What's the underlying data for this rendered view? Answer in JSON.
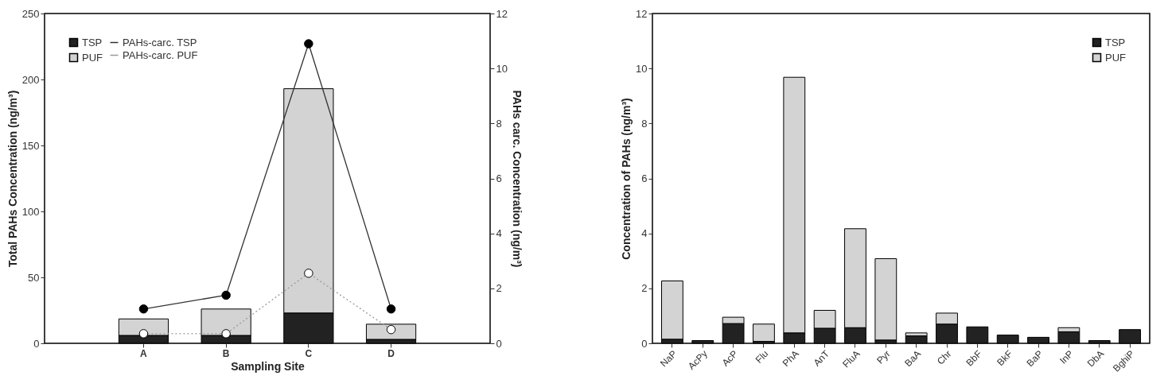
{
  "chart_data": [
    {
      "type": "bar",
      "stacked": true,
      "xlabel": "Sampling Site",
      "ylabel": "Total PAHs Concentration (ng/m³)",
      "y2label": "PAHs carc. Concentration (ng/m³)",
      "categories": [
        "A",
        "B",
        "C",
        "D"
      ],
      "ylim": [
        0,
        250
      ],
      "yticks": [
        0,
        50,
        100,
        150,
        200,
        250
      ],
      "y2lim": [
        0,
        12
      ],
      "y2ticks": [
        0,
        2,
        4,
        6,
        8,
        10,
        12
      ],
      "legend": "top left",
      "marker": "circle",
      "series": [
        {
          "name": "TSP",
          "color": "#222222",
          "values": [
            6,
            6,
            23,
            3
          ]
        },
        {
          "name": "PUF",
          "color": "#d3d3d3",
          "values": [
            12.5,
            20,
            170,
            11.5
          ]
        },
        {
          "name": "PAHs-carc. TSP",
          "type": "line",
          "axis": "y2",
          "color": "#333333",
          "line_style": "solid",
          "values": [
            1.25,
            1.75,
            10.9,
            1.25
          ]
        },
        {
          "name": "PAHs-carc. PUF",
          "type": "line",
          "axis": "y2",
          "color": "#999999",
          "line_style": "dotted",
          "values": [
            0.35,
            0.35,
            2.55,
            0.5
          ]
        }
      ]
    },
    {
      "type": "bar",
      "stacked": true,
      "ylabel": "Concentration of PAHs (ng/m³)",
      "categories": [
        "NaP",
        "AcPy",
        "AcP",
        "Flu",
        "PhA",
        "AnT",
        "FluA",
        "Pyr",
        "BaA",
        "Chr",
        "BbF",
        "BkF",
        "BaP",
        "InP",
        "DbA",
        "BghiP"
      ],
      "ylim": [
        0,
        12
      ],
      "yticks": [
        0,
        2,
        4,
        6,
        8,
        10,
        12
      ],
      "legend": "top right",
      "series": [
        {
          "name": "TSP",
          "color": "#222222",
          "values": [
            0.15,
            0.1,
            0.72,
            0.07,
            0.38,
            0.55,
            0.57,
            0.12,
            0.27,
            0.7,
            0.6,
            0.3,
            0.22,
            0.42,
            0.1,
            0.5
          ]
        },
        {
          "name": "PUF",
          "color": "#d3d3d3",
          "values": [
            2.12,
            0,
            0.23,
            0.63,
            9.3,
            0.65,
            3.6,
            2.96,
            0.11,
            0.4,
            0,
            0,
            0,
            0.15,
            0,
            0
          ]
        }
      ]
    }
  ]
}
